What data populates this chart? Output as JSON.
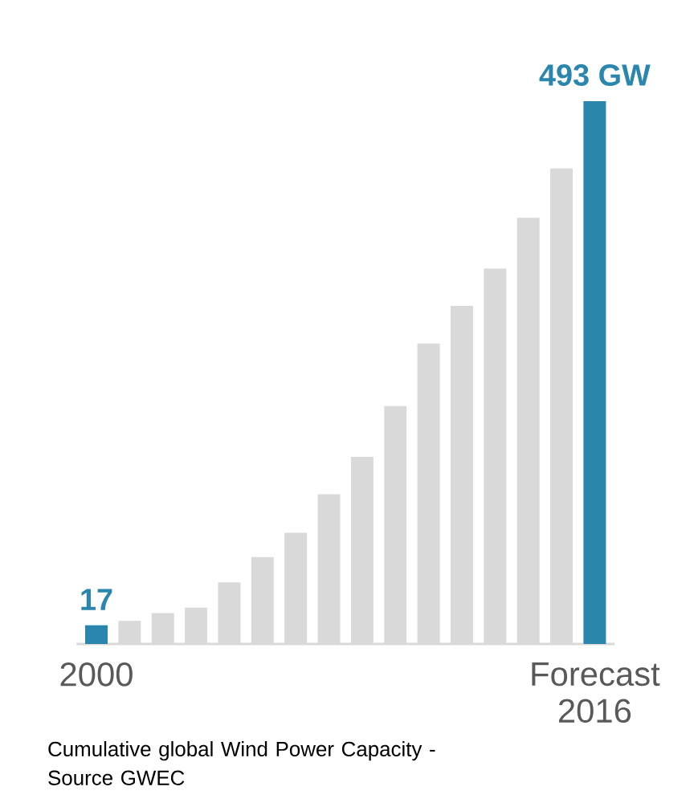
{
  "chart_data": {
    "type": "bar",
    "categories": [
      "2000",
      null,
      null,
      null,
      null,
      null,
      null,
      null,
      null,
      null,
      null,
      null,
      null,
      null,
      null,
      "Forecast 2016"
    ],
    "values": [
      17,
      21,
      28,
      33,
      56,
      79,
      101,
      136,
      170,
      216,
      273,
      307,
      341,
      387,
      432,
      493
    ],
    "colors": [
      "#2b86ad",
      "#d9d9d9",
      "#d9d9d9",
      "#d9d9d9",
      "#d9d9d9",
      "#d9d9d9",
      "#d9d9d9",
      "#d9d9d9",
      "#d9d9d9",
      "#d9d9d9",
      "#d9d9d9",
      "#d9d9d9",
      "#d9d9d9",
      "#d9d9d9",
      "#d9d9d9",
      "#2b86ad"
    ],
    "value_labels": [
      "17",
      null,
      null,
      null,
      null,
      null,
      null,
      null,
      null,
      null,
      null,
      null,
      null,
      null,
      null,
      "493 GW"
    ],
    "annotations": [
      "Cumulative global Wind Power Capacity - Source GWEC"
    ]
  }
}
